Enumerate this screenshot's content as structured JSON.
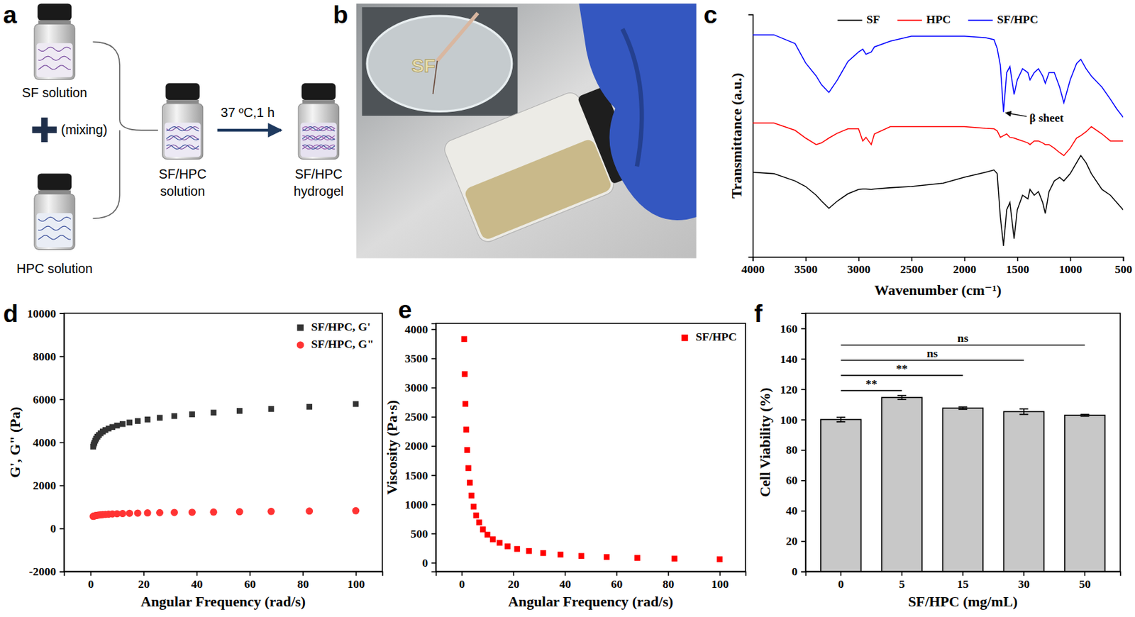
{
  "diagram": {
    "panel": "a",
    "nodes": [
      {
        "label_lines": [
          "SF solution"
        ]
      },
      {
        "label_lines": [
          "HPC solution"
        ]
      },
      {
        "label_lines": [
          "SF/HPC",
          "solution"
        ]
      },
      {
        "label_lines": [
          "SF/HPC",
          "hydrogel"
        ]
      }
    ],
    "mixing_label": "(mixing)",
    "step_label": "37 ºC,1 h"
  },
  "photo": {
    "panel": "b",
    "inset_text": "SF"
  },
  "chart_data": [
    {
      "panel": "c",
      "type": "line",
      "x_label": "Wavenumber (cm⁻¹)",
      "y_label": "Transmittance (a.u.)",
      "x": [
        4000,
        3800,
        3600,
        3500,
        3400,
        3350,
        3280,
        3200,
        3100,
        3000,
        2960,
        2930,
        2880,
        2850,
        2700,
        2500,
        2200,
        2000,
        1800,
        1720,
        1690,
        1660,
        1630,
        1600,
        1570,
        1530,
        1500,
        1450,
        1400,
        1380,
        1340,
        1300,
        1260,
        1235,
        1200,
        1150,
        1100,
        1060,
        1000,
        940,
        900,
        850,
        800,
        700,
        620,
        560,
        500
      ],
      "xlim": [
        4000,
        500
      ],
      "xticks": [
        4000,
        3500,
        3000,
        2500,
        2000,
        1500,
        1000,
        500
      ],
      "ylim": [
        0,
        10
      ],
      "yticks": [],
      "tick_labels": "x",
      "legend": "top",
      "series": [
        {
          "name": "SF",
          "color": "#000000",
          "values": [
            3.49,
            3.43,
            3.13,
            2.9,
            2.54,
            2.3,
            2.0,
            2.3,
            2.6,
            2.78,
            2.8,
            2.8,
            2.78,
            2.8,
            2.85,
            2.9,
            3.04,
            3.28,
            3.49,
            3.58,
            3.43,
            1.64,
            0.45,
            1.94,
            2.24,
            0.75,
            1.94,
            2.54,
            2.39,
            2.78,
            2.54,
            2.69,
            2.24,
            1.79,
            2.69,
            3.13,
            3.28,
            3.13,
            3.43,
            3.88,
            4.18,
            3.88,
            3.43,
            2.78,
            2.54,
            2.24,
            1.94
          ]
        },
        {
          "name": "HPC",
          "color": "#ff0000",
          "values": [
            5.52,
            5.52,
            5.22,
            4.9,
            4.63,
            4.7,
            4.9,
            5.1,
            5.28,
            5.28,
            4.78,
            4.93,
            4.63,
            5.07,
            5.37,
            5.37,
            5.37,
            5.37,
            5.3,
            5.28,
            5.2,
            4.93,
            5.0,
            5.07,
            4.93,
            4.9,
            4.85,
            4.78,
            4.7,
            4.63,
            4.78,
            4.78,
            4.7,
            4.63,
            4.63,
            4.48,
            4.3,
            4.18,
            4.48,
            4.9,
            5.0,
            5.16,
            5.37,
            5.07,
            4.78,
            4.78,
            4.78
          ]
        },
        {
          "name": "SF/HPC",
          "color": "#0000ff",
          "values": [
            9.16,
            9.16,
            8.8,
            8.0,
            7.46,
            7.1,
            6.78,
            7.3,
            8.06,
            8.45,
            8.57,
            8.36,
            8.45,
            8.66,
            8.9,
            9.1,
            9.1,
            9.1,
            9.04,
            8.96,
            8.6,
            7.9,
            5.97,
            7.6,
            7.85,
            6.7,
            7.3,
            7.76,
            7.6,
            7.3,
            7.6,
            7.76,
            7.46,
            7.16,
            7.6,
            7.6,
            7.0,
            6.36,
            7.3,
            7.97,
            8.15,
            7.76,
            7.46,
            7.0,
            6.5,
            6.1,
            5.76
          ]
        }
      ],
      "annotations": [
        {
          "text": "β sheet",
          "x": 1630,
          "y": 5.97
        }
      ]
    },
    {
      "panel": "d",
      "type": "scatter",
      "x_label": "Angular Frequency (rad/s)",
      "y_label": "G', G\" (Pa)",
      "x": [
        1,
        1.21,
        1.47,
        1.78,
        2.15,
        2.61,
        3.16,
        3.83,
        4.64,
        5.62,
        6.81,
        8.25,
        10,
        12.1,
        14.7,
        17.8,
        21.5,
        26.1,
        31.6,
        38.3,
        46.4,
        56.2,
        68.1,
        82.5,
        100
      ],
      "xlim": [
        -10,
        110
      ],
      "xticks": [
        0,
        20,
        40,
        60,
        80,
        100
      ],
      "ylim": [
        -2000,
        10000
      ],
      "yticks": [
        -2000,
        0,
        2000,
        4000,
        6000,
        8000,
        10000
      ],
      "legend": "top-right",
      "series": [
        {
          "name": "SF/HPC, G'",
          "color": "#333333",
          "marker": "square",
          "values": [
            3800,
            3900,
            3980,
            4080,
            4170,
            4260,
            4340,
            4420,
            4500,
            4570,
            4640,
            4710,
            4780,
            4850,
            4920,
            4990,
            5060,
            5140,
            5220,
            5300,
            5380,
            5460,
            5550,
            5650,
            5780
          ]
        },
        {
          "name": "SF/HPC, G\"",
          "color": "#ff3333",
          "marker": "circle",
          "values": [
            560,
            570,
            580,
            590,
            600,
            610,
            620,
            630,
            640,
            650,
            660,
            670,
            680,
            690,
            700,
            710,
            720,
            730,
            740,
            750,
            760,
            775,
            790,
            805,
            820
          ]
        }
      ]
    },
    {
      "panel": "e",
      "type": "scatter",
      "x_label": "Angular Frequency (rad/s)",
      "y_label": "Viscosity (Pa·s)",
      "x": [
        1,
        1.21,
        1.47,
        1.78,
        2.15,
        2.61,
        3.16,
        3.83,
        4.64,
        5.62,
        6.81,
        8.25,
        10,
        12.1,
        14.7,
        17.8,
        21.5,
        26.1,
        31.6,
        38.3,
        46.4,
        56.2,
        68.1,
        82.5,
        100
      ],
      "xlim": [
        -10,
        110
      ],
      "xticks": [
        0,
        20,
        40,
        60,
        80,
        100
      ],
      "ylim": [
        -150,
        4100
      ],
      "yticks": [
        0,
        500,
        1000,
        1500,
        2000,
        2500,
        3000,
        3500,
        4000
      ],
      "legend": "top-right",
      "series": [
        {
          "name": "SF/HPC",
          "color": "#ff0000",
          "marker": "square",
          "values": [
            3830,
            3230,
            2720,
            2280,
            1930,
            1620,
            1370,
            1150,
            960,
            810,
            690,
            570,
            480,
            400,
            340,
            280,
            235,
            200,
            165,
            138,
            115,
            97,
            82,
            69,
            58
          ]
        }
      ]
    },
    {
      "panel": "f",
      "type": "bar",
      "x_label": "SF/HPC (mg/mL)",
      "y_label": "Cell Viability (%)",
      "categories": [
        "0",
        "5",
        "15",
        "30",
        "50"
      ],
      "values": [
        100,
        114.5,
        107.5,
        105.2,
        102.8
      ],
      "errors": [
        1.5,
        1.3,
        0.8,
        1.8,
        0.6
      ],
      "color": "#c8c8c8",
      "ylim": [
        0,
        170
      ],
      "yticks": [
        0,
        20,
        40,
        60,
        80,
        100,
        120,
        140,
        160
      ],
      "comparisons": [
        {
          "label": "ns",
          "pair": [
            "0",
            "50"
          ]
        },
        {
          "label": "ns",
          "pair": [
            "0",
            "30"
          ]
        },
        {
          "label": "**",
          "pair": [
            "0",
            "15"
          ]
        },
        {
          "label": "**",
          "pair": [
            "0",
            "5"
          ]
        }
      ]
    }
  ]
}
